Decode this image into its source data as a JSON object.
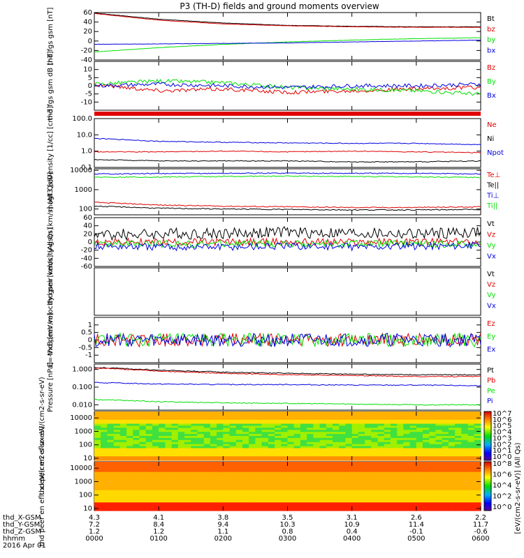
{
  "title": "P3 (TH-D) fields and ground moments overview",
  "colors": {
    "black": "#000000",
    "red": "#e00000",
    "green": "#00e000",
    "blue": "#0000e0"
  },
  "colorbar": {
    "upper_label": "[eV/(cm2-s-sr-eV)] (All Qs)",
    "upper_ticks": [
      "10^7",
      "10^6",
      "10^5",
      "10^4",
      "10^3",
      "10^2",
      "10^1",
      "10^0"
    ],
    "lower_ticks": [
      "10^8",
      "10^6",
      "10^4",
      "10^2",
      "10^0"
    ]
  },
  "orbit": {
    "labels": [
      "thd_X-GSM",
      "thd_Y-GSM",
      "thd_Z-GSM",
      "hhmm",
      "2016 Apr 01"
    ],
    "x_gsm": [
      "4.3",
      "4.1",
      "3.8",
      "3.5",
      "3.1",
      "2.6",
      "2.2"
    ],
    "y_gsm": [
      "7.2",
      "8.4",
      "9.4",
      "10.3",
      "10.9",
      "11.4",
      "11.7"
    ],
    "z_gsm": [
      "1.2",
      "1.2",
      "1.1",
      "0.8",
      "0.4",
      "-0.1",
      "-0.6"
    ],
    "hhmm": [
      "0000",
      "0100",
      "0200",
      "0300",
      "0400",
      "0500",
      "0600"
    ]
  },
  "chart_data": [
    {
      "type": "line",
      "ylabel": "thd fgs gsm [nT]",
      "ylim": [
        -40,
        60
      ],
      "yticks": [
        "60",
        "40",
        "20",
        "0",
        "-20",
        "-40"
      ],
      "ytick_values": [
        60,
        40,
        20,
        0,
        -20,
        -40
      ],
      "x": [
        "0000",
        "0100",
        "0200",
        "0300",
        "0400",
        "0500",
        "0600"
      ],
      "series": [
        {
          "name": "Bt",
          "color": "black",
          "values": [
            59,
            46,
            38,
            33,
            31,
            30,
            30
          ]
        },
        {
          "name": "bz",
          "color": "red",
          "values": [
            58,
            44,
            36,
            32,
            30,
            29,
            29
          ]
        },
        {
          "name": "by",
          "color": "green",
          "values": [
            -23,
            -14,
            -7,
            -2,
            2,
            5,
            7
          ]
        },
        {
          "name": "bx",
          "color": "blue",
          "values": [
            -7,
            -6,
            -5,
            -4,
            -2,
            0,
            2
          ]
        }
      ]
    },
    {
      "type": "line",
      "ylabel": "thd fgs gsm dB [nT]",
      "ylim": [
        -15,
        15
      ],
      "yticks": [
        "10",
        "5",
        "0",
        "-5",
        "-10"
      ],
      "ytick_values": [
        10,
        5,
        0,
        -5,
        -10
      ],
      "x": [
        "0000",
        "0100",
        "0200",
        "0300",
        "0400",
        "0500",
        "0600"
      ],
      "series": [
        {
          "name": "Bz",
          "color": "red",
          "values": [
            1,
            -3,
            -2,
            -4,
            -3,
            -2,
            -1
          ]
        },
        {
          "name": "By",
          "color": "green",
          "values": [
            1,
            3,
            2,
            -1,
            -2,
            -3,
            -5
          ]
        },
        {
          "name": "Bx",
          "color": "blue",
          "values": [
            0,
            1,
            0,
            -1,
            0,
            0,
            1
          ]
        }
      ]
    },
    {
      "type": "line",
      "ylabel": "Density [1/cc] [cm-3]",
      "yscale": "log",
      "ylim": [
        0.1,
        100
      ],
      "yticks": [
        "100.0",
        "10.0",
        "1.0",
        "0.1"
      ],
      "ytick_values": [
        100,
        10,
        1,
        0.1
      ],
      "x": [
        "0000",
        "0100",
        "0200",
        "0300",
        "0400",
        "0500",
        "0600"
      ],
      "series": [
        {
          "name": "Ne",
          "color": "red",
          "values": [
            0.9,
            0.9,
            1.0,
            0.9,
            1.0,
            0.9,
            0.8
          ]
        },
        {
          "name": "Ni",
          "color": "black",
          "values": [
            0.3,
            0.25,
            0.25,
            0.25,
            0.22,
            0.22,
            0.25
          ]
        },
        {
          "name": "Npot",
          "color": "blue",
          "values": [
            6,
            4,
            3.5,
            3.2,
            3.0,
            3.0,
            2.5
          ]
        }
      ]
    },
    {
      "type": "line",
      "ylabel": "magt3 [eV]",
      "yscale": "log",
      "ylim": [
        50,
        12000
      ],
      "yticks": [
        "10000",
        "1000",
        "100"
      ],
      "ytick_values": [
        10000,
        1000,
        100
      ],
      "x": [
        "0000",
        "0100",
        "0200",
        "0300",
        "0400",
        "0500",
        "0600"
      ],
      "series": [
        {
          "name": "Te⊥",
          "color": "red",
          "values": [
            220,
            160,
            140,
            130,
            120,
            120,
            130
          ]
        },
        {
          "name": "Te||",
          "color": "black",
          "values": [
            140,
            110,
            100,
            95,
            90,
            90,
            95
          ]
        },
        {
          "name": "Ti⊥",
          "color": "blue",
          "values": [
            6500,
            6800,
            7000,
            7200,
            7000,
            7000,
            6500
          ]
        },
        {
          "name": "Ti||",
          "color": "green",
          "values": [
            4500,
            4500,
            4800,
            5000,
            4800,
            4600,
            4300
          ]
        }
      ]
    },
    {
      "type": "line",
      "ylabel": "thd peir velocity gsm [km/s] (All Qs)",
      "ylim": [
        -60,
        60
      ],
      "yticks": [
        "60",
        "40",
        "20",
        "0",
        "-20",
        "-40",
        "-60"
      ],
      "ytick_values": [
        60,
        40,
        20,
        0,
        -20,
        -40,
        -60
      ],
      "x": [
        "0000",
        "0100",
        "0200",
        "0300",
        "0400",
        "0500",
        "0600"
      ],
      "series": [
        {
          "name": "Vt",
          "color": "black",
          "values": [
            18,
            20,
            22,
            24,
            22,
            20,
            25
          ]
        },
        {
          "name": "Vz",
          "color": "red",
          "values": [
            0,
            0,
            0,
            0,
            0,
            0,
            0
          ]
        },
        {
          "name": "Vy",
          "color": "green",
          "values": [
            -5,
            -5,
            -4,
            -5,
            -4,
            -5,
            -5
          ]
        },
        {
          "name": "Vx",
          "color": "blue",
          "values": [
            -10,
            -12,
            -12,
            -10,
            -12,
            -10,
            -8
          ]
        }
      ]
    },
    {
      "type": "line",
      "ylabel": "thd peer velocity gsm [km/s] (All Qs)",
      "series": [
        {
          "name": "Vt",
          "color": "black"
        },
        {
          "name": "Vz",
          "color": "red"
        },
        {
          "name": "Vy",
          "color": "green"
        },
        {
          "name": "Vx",
          "color": "blue"
        }
      ]
    },
    {
      "type": "line",
      "ylabel": "E=-VxB [mV/m]",
      "ylim": [
        -1.5,
        1.5
      ],
      "yticks": [
        "1",
        "0.5",
        "0",
        "-0.5",
        "-1"
      ],
      "ytick_values": [
        1,
        0.5,
        0,
        -0.5,
        -1
      ],
      "x": [
        "0000",
        "0100",
        "0200",
        "0300",
        "0400",
        "0500",
        "0600"
      ],
      "series": [
        {
          "name": "Ez",
          "color": "red",
          "values": [
            0,
            0,
            0,
            0,
            0,
            0,
            0
          ]
        },
        {
          "name": "Ey",
          "color": "green",
          "values": [
            0,
            0,
            0,
            0,
            0,
            0,
            0
          ]
        },
        {
          "name": "Ex",
          "color": "blue",
          "values": [
            0,
            0,
            0,
            0,
            0,
            0,
            0
          ]
        }
      ]
    },
    {
      "type": "line",
      "ylabel": "Pressure [nPa]",
      "yscale": "log",
      "ylim": [
        0.005,
        2
      ],
      "yticks": [
        "1.000",
        "0.100",
        "0.010"
      ],
      "ytick_values": [
        1,
        0.1,
        0.01
      ],
      "x": [
        "0000",
        "0100",
        "0200",
        "0300",
        "0400",
        "0500",
        "0600"
      ],
      "series": [
        {
          "name": "Pt",
          "color": "black",
          "values": [
            1.3,
            0.9,
            0.7,
            0.6,
            0.55,
            0.5,
            0.5
          ]
        },
        {
          "name": "Pb",
          "color": "red",
          "values": [
            1.2,
            0.8,
            0.6,
            0.5,
            0.45,
            0.4,
            0.4
          ]
        },
        {
          "name": "Pe",
          "color": "green",
          "values": [
            0.02,
            0.015,
            0.013,
            0.012,
            0.011,
            0.01,
            0.01
          ]
        },
        {
          "name": "Pi",
          "color": "blue",
          "values": [
            0.18,
            0.15,
            0.14,
            0.14,
            0.13,
            0.13,
            0.12
          ]
        }
      ]
    },
    {
      "type": "heatmap",
      "ylabel": "thd peir en eflux eV/(cm2-s-sr-eV)",
      "yscale": "log",
      "ylim": [
        7,
        30000
      ],
      "yticks": [
        "10000",
        "1000",
        "100",
        "10"
      ],
      "ytick_values": [
        10000,
        1000,
        100,
        10
      ]
    },
    {
      "type": "heatmap",
      "ylabel": "thd peer en eflux eV/(cm2-s-sr-eV)",
      "yscale": "log",
      "ylim": [
        7,
        30000
      ],
      "yticks": [
        "10000",
        "1000",
        "100",
        "10"
      ],
      "ytick_values": [
        10000,
        1000,
        100,
        10
      ]
    }
  ]
}
